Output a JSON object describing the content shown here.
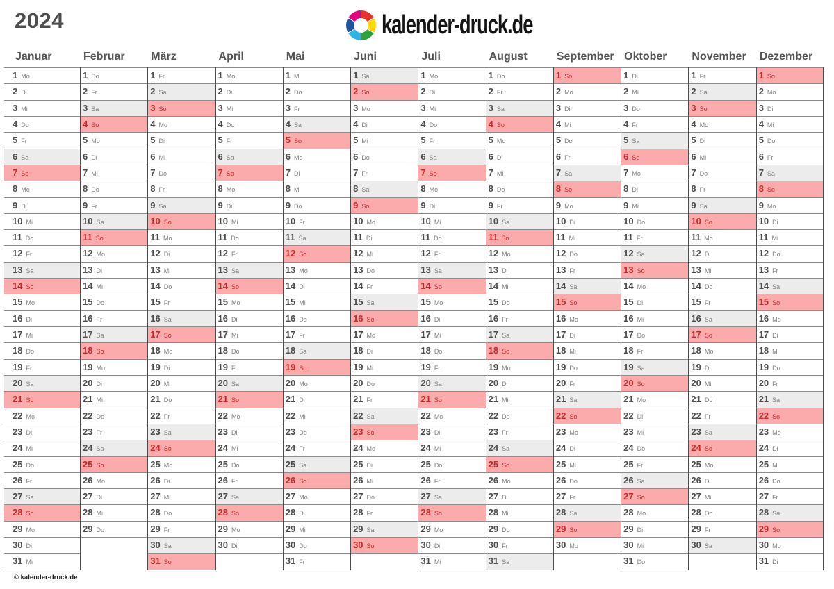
{
  "title": "2024",
  "logo": {
    "icon": "color-wheel-icon",
    "text": "kalender-druck.de",
    "icon_colors": [
      "#e8312a",
      "#ffd900",
      "#2ea23c",
      "#2fb4e9",
      "#1f549f",
      "#e5007d"
    ]
  },
  "weekday_names": [
    "Mo",
    "Di",
    "Mi",
    "Do",
    "Fr",
    "Sa",
    "So"
  ],
  "months": [
    {
      "label": "Januar",
      "days": 31,
      "first_weekday": "Mo"
    },
    {
      "label": "Februar",
      "days": 29,
      "first_weekday": "Do"
    },
    {
      "label": "März",
      "days": 31,
      "first_weekday": "Fr"
    },
    {
      "label": "April",
      "days": 30,
      "first_weekday": "Mo"
    },
    {
      "label": "Mai",
      "days": 31,
      "first_weekday": "Mi"
    },
    {
      "label": "Juni",
      "days": 30,
      "first_weekday": "Sa"
    },
    {
      "label": "Juli",
      "days": 31,
      "first_weekday": "Mo"
    },
    {
      "label": "August",
      "days": 31,
      "first_weekday": "Do"
    },
    {
      "label": "September",
      "days": 30,
      "first_weekday": "So"
    },
    {
      "label": "Oktober",
      "days": 31,
      "first_weekday": "Di"
    },
    {
      "label": "November",
      "days": 30,
      "first_weekday": "Fr"
    },
    {
      "label": "Dezember",
      "days": 31,
      "first_weekday": "So"
    }
  ],
  "colors": {
    "sunday_bg": "#fbabab",
    "sunday_text": "#c32b2b",
    "saturday_bg": "#ececec",
    "day_number": "#4d4d4d",
    "weekday_label": "#7f7f7f",
    "month_name": "#555555",
    "row_line": "#8c8c8c",
    "column_line": "#4d4d4d"
  },
  "footer": {
    "copyright": "© kalender-druck.de"
  }
}
